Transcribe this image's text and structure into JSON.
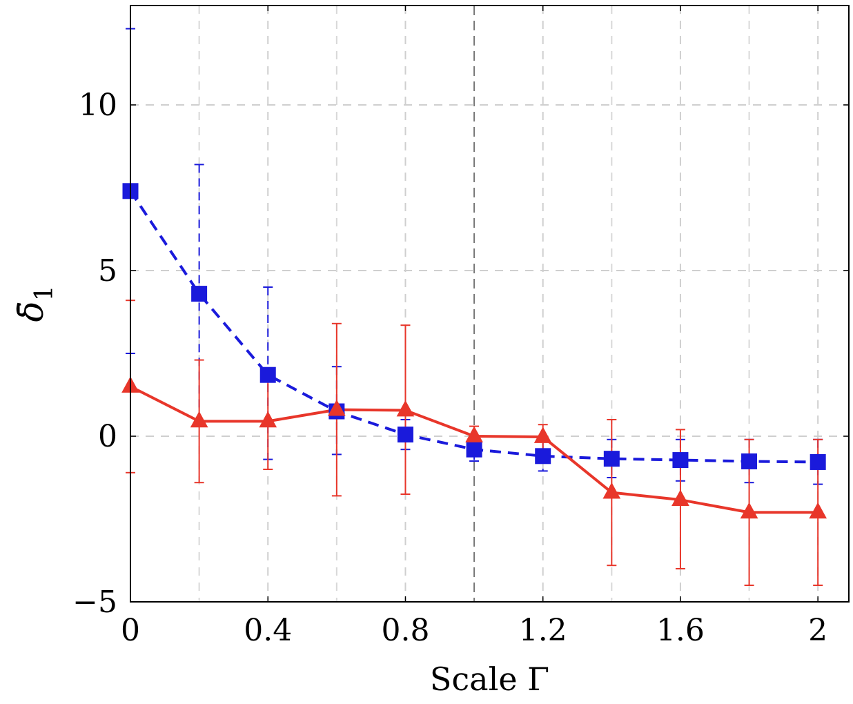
{
  "chart_data": {
    "type": "line",
    "xlabel": "Scale Γ",
    "ylabel_main": "δ̄",
    "ylabel_sub": "1",
    "xlim": [
      0,
      2.09
    ],
    "ylim": [
      -5,
      13
    ],
    "xticks": [
      "0",
      "0.4",
      "0.8",
      "1.2",
      "1.6",
      "2"
    ],
    "xtick_values": [
      0,
      0.4,
      0.8,
      1.2,
      1.6,
      2
    ],
    "yticks": [
      "−5",
      "0",
      "5",
      "10"
    ],
    "ytick_values": [
      -5,
      0,
      5,
      10
    ],
    "grid": true,
    "highlight_vline_x": 1.0,
    "series": [
      {
        "color": "#1a1adb",
        "marker": "square",
        "line_style": "dashed",
        "x": [
          0,
          0.2,
          0.4,
          0.6,
          0.8,
          1.0,
          1.2,
          1.4,
          1.6,
          1.8,
          2.0
        ],
        "y": [
          7.4,
          4.3,
          1.85,
          0.75,
          0.05,
          -0.4,
          -0.6,
          -0.68,
          -0.72,
          -0.76,
          -0.78
        ],
        "err_low": [
          2.5,
          0.3,
          -0.7,
          -0.55,
          -0.4,
          -0.75,
          -1.05,
          -1.25,
          -1.35,
          -1.4,
          -1.45
        ],
        "err_high": [
          12.3,
          8.2,
          4.5,
          2.1,
          0.5,
          -0.05,
          -0.15,
          -0.1,
          -0.1,
          -0.1,
          -0.1
        ]
      },
      {
        "color": "#e8362a",
        "marker": "triangle",
        "line_style": "solid",
        "x": [
          0,
          0.2,
          0.4,
          0.6,
          0.8,
          1.0,
          1.2,
          1.4,
          1.6,
          1.8,
          2.0
        ],
        "y": [
          1.5,
          0.45,
          0.45,
          0.8,
          0.78,
          0.0,
          -0.02,
          -1.7,
          -1.92,
          -2.3,
          -2.3
        ],
        "err_low": [
          -1.1,
          -1.4,
          -1.0,
          -1.8,
          -1.75,
          -0.35,
          -0.45,
          -3.9,
          -4.0,
          -4.5,
          -4.5
        ],
        "err_high": [
          4.1,
          2.3,
          1.8,
          3.4,
          3.35,
          0.3,
          0.35,
          0.5,
          0.2,
          -0.1,
          -0.1
        ]
      }
    ]
  }
}
